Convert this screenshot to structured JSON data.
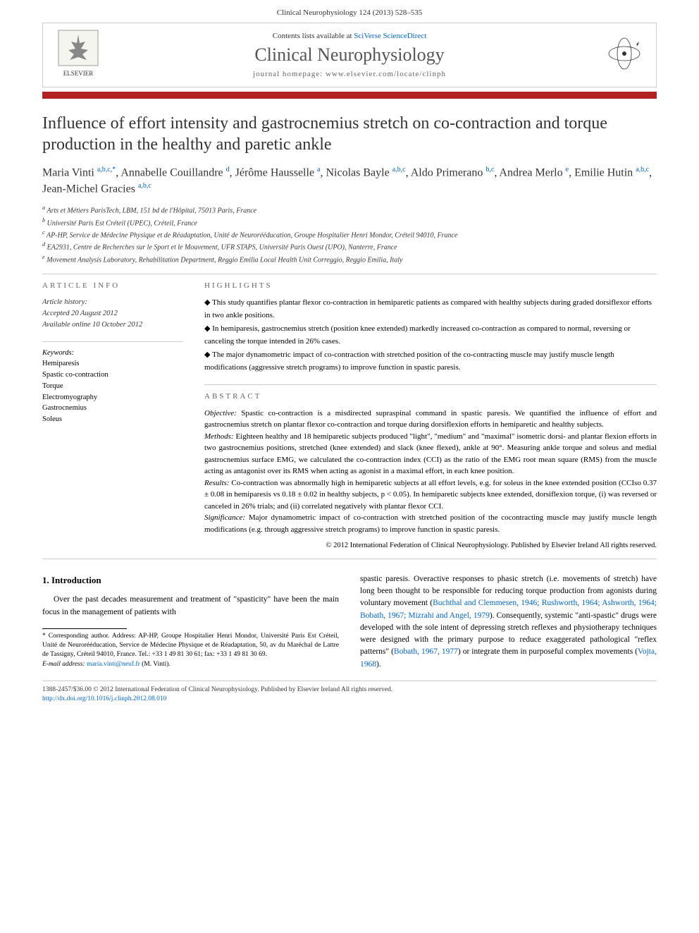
{
  "header": {
    "citation": "Clinical Neurophysiology 124 (2013) 528–535"
  },
  "banner": {
    "contents_line_prefix": "Contents lists available at ",
    "contents_line_link": "SciVerse ScienceDirect",
    "journal_name": "Clinical Neurophysiology",
    "homepage_prefix": "journal homepage: ",
    "homepage_url": "www.elsevier.com/locate/clinph",
    "elsevier_label": "ELSEVIER"
  },
  "colors": {
    "bar": "#b22222",
    "link": "#0066cc",
    "text": "#333333",
    "border": "#cccccc"
  },
  "article": {
    "title": "Influence of effort intensity and gastrocnemius stretch on co-contraction and torque production in the healthy and paretic ankle",
    "authors_html": "Maria Vinti <sup>a,b,c,*</sup>, Annabelle Couillandre <sup>d</sup>, Jérôme Hausselle <sup>a</sup>, Nicolas Bayle <sup>a,b,c</sup>, Aldo Primerano <sup>b,c</sup>, Andrea Merlo <sup>e</sup>, Emilie Hutin <sup>a,b,c</sup>, Jean-Michel Gracies <sup>a,b,c</sup>",
    "affiliations": [
      "a Arts et Métiers ParisTech, LBM, 151 bd de l'Hôpital, 75013 Paris, France",
      "b Université Paris Est Créteil (UPEC), Créteil, France",
      "c AP-HP, Service de Médecine Physique et de Réadaptation, Unité de Neurorééducation, Groupe Hospitalier Henri Mondor, Créteil 94010, France",
      "d EA2931, Centre de Recherches sur le Sport et le Mouvement, UFR STAPS, Université Paris Ouest (UPO), Nanterre, France",
      "e Movement Analysis Laboratory, Rehabilitation Department, Reggio Emilia Local Health Unit Correggio, Reggio Emilia, Italy"
    ]
  },
  "info": {
    "section_label": "ARTICLE INFO",
    "history_label": "Article history:",
    "accepted": "Accepted 20 August 2012",
    "available": "Available online 10 October 2012",
    "keywords_label": "Keywords:",
    "keywords": [
      "Hemiparesis",
      "Spastic co-contraction",
      "Torque",
      "Electromyography",
      "Gastrocnemius",
      "Soleus"
    ]
  },
  "highlights": {
    "section_label": "HIGHLIGHTS",
    "items": [
      "This study quantifies plantar flexor co-contraction in hemiparetic patients as compared with healthy subjects during graded dorsiflexor efforts in two ankle positions.",
      "In hemiparesis, gastrocnemius stretch (position knee extended) markedly increased co-contraction as compared to normal, reversing or canceling the torque intended in 26% cases.",
      "The major dynamometric impact of co-contraction with stretched position of the co-contracting muscle may justify muscle length modifications (aggressive stretch programs) to improve function in spastic paresis."
    ]
  },
  "abstract": {
    "section_label": "ABSTRACT",
    "objective_label": "Objective:",
    "objective": "Spastic co-contraction is a misdirected supraspinal command in spastic paresis. We quantified the influence of effort and gastrocnemius stretch on plantar flexor co-contraction and torque during dorsiflexion efforts in hemiparetic and healthy subjects.",
    "methods_label": "Methods:",
    "methods": "Eighteen healthy and 18 hemiparetic subjects produced \"light\", \"medium\" and \"maximal\" isometric dorsi- and plantar flexion efforts in two gastrocnemius positions, stretched (knee extended) and slack (knee flexed), ankle at 90°. Measuring ankle torque and soleus and medial gastrocnemius surface EMG, we calculated the co-contraction index (CCI) as the ratio of the EMG root mean square (RMS) from the muscle acting as antagonist over its RMS when acting as agonist in a maximal effort, in each knee position.",
    "results_label": "Results:",
    "results": "Co-contraction was abnormally high in hemiparetic subjects at all effort levels, e.g. for soleus in the knee extended position (CCIso 0.37 ± 0.08 in hemiparesis vs 0.18 ± 0.02 in healthy subjects, p < 0.05). In hemiparetic subjects knee extended, dorsiflexion torque, (i) was reversed or canceled in 26% trials; and (ii) correlated negatively with plantar flexor CCI.",
    "significance_label": "Significance:",
    "significance": "Major dynamometric impact of co-contraction with stretched position of the cocontracting muscle may justify muscle length modifications (e.g. through aggressive stretch programs) to improve function in spastic paresis.",
    "copyright": "© 2012 International Federation of Clinical Neurophysiology. Published by Elsevier Ireland  All rights reserved."
  },
  "body": {
    "intro_heading": "1. Introduction",
    "col1_p1": "Over the past decades measurement and treatment of \"spasticity\" have been the main focus in the management of patients with",
    "col2_p1_prefix": "spastic paresis. Overactive responses to phasic stretch (i.e. movements of stretch) have long been thought to be responsible for reducing torque production from agonists during voluntary movement (",
    "col2_refs1": "Buchthal and Clemmesen, 1946; Rushworth, 1964; Ashworth, 1964; Bobath, 1967; Mizrahi and Angel, 1979",
    "col2_p1_mid": "). Consequently, systemic \"anti-spastic\" drugs were developed with the sole intent of depressing stretch reflexes and physiotherapy techniques were designed with the primary purpose to reduce exaggerated pathological \"reflex patterns\" (",
    "col2_refs2": "Bobath, 1967, 1977",
    "col2_p1_mid2": ") or integrate them in purposeful complex movements (",
    "col2_refs3": "Vojta, 1968",
    "col2_p1_end": ")."
  },
  "footnote": {
    "corr_label": "* Corresponding author.",
    "corr_text": " Address: AP-HP, Groupe Hospitalier Henri Mondor, Université Paris Est Créteil, Unité de Neurorééducation, Service de Médecine Physique et de Réadaptation, 50, av du Maréchal de Lattre de Tassigny, Créteil 94010, France. Tel.: +33 1 49 81 30 61; fax: +33 1 49 81 30 69.",
    "email_label": "E-mail address:",
    "email": "maria.vinti@neuf.fr",
    "email_suffix": " (M. Vinti)."
  },
  "footer": {
    "line1": "1388-2457/$36.00 © 2012 International Federation of Clinical Neurophysiology. Published by Elsevier Ireland  All rights reserved.",
    "doi": "http://dx.doi.org/10.1016/j.clinph.2012.08.010"
  }
}
